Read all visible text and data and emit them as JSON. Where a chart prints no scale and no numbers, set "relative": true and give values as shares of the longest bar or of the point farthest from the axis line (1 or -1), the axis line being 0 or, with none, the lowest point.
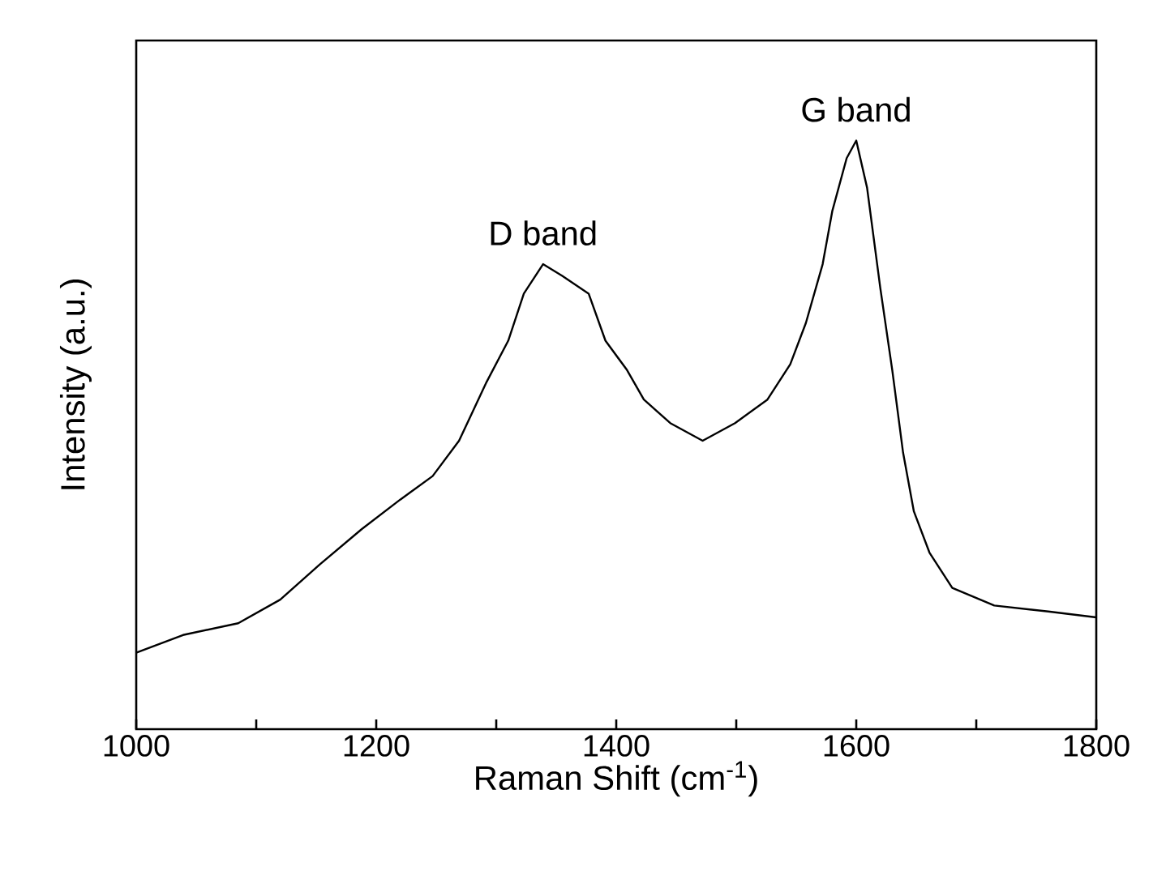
{
  "chart_data": {
    "type": "line",
    "relative": true,
    "xlabel": "Raman Shift (cm$^{-1}$)",
    "ylabel": "Intensity (a.u.)",
    "xlim": [
      1000,
      1800
    ],
    "xticks": [
      1000,
      {
        "value": 1100,
        "label": null
      },
      1200,
      {
        "value": 1300,
        "label": null
      },
      1400,
      {
        "value": 1500,
        "label": null
      },
      1600,
      {
        "value": 1700,
        "label": null
      },
      1800
    ],
    "x": [
      1000,
      1039,
      1085,
      1120,
      1153,
      1188,
      1220,
      1247,
      1269,
      1292,
      1310,
      1323,
      1339,
      1355,
      1377,
      1391,
      1409,
      1423,
      1445,
      1472,
      1499,
      1526,
      1545,
      1558,
      1572,
      1580,
      1592,
      1600,
      1609,
      1620,
      1630,
      1639,
      1648,
      1661,
      1680,
      1715,
      1760,
      1800
    ],
    "series": [
      {
        "color": "#000000",
        "values": [
          0.13,
          0.16,
          0.18,
          0.22,
          0.28,
          0.34,
          0.39,
          0.43,
          0.49,
          0.59,
          0.66,
          0.74,
          0.79,
          0.77,
          0.74,
          0.66,
          0.61,
          0.56,
          0.52,
          0.49,
          0.52,
          0.56,
          0.62,
          0.69,
          0.79,
          0.88,
          0.97,
          1.0,
          0.92,
          0.75,
          0.61,
          0.47,
          0.37,
          0.3,
          0.24,
          0.21,
          0.2,
          0.19
        ]
      }
    ],
    "annotations": [
      {
        "text": "D band",
        "x": 1339,
        "y": 0.79
      },
      {
        "text": "G band",
        "x": 1600,
        "y": 1.0
      }
    ],
    "marker": "none",
    "line_style": "solid"
  }
}
